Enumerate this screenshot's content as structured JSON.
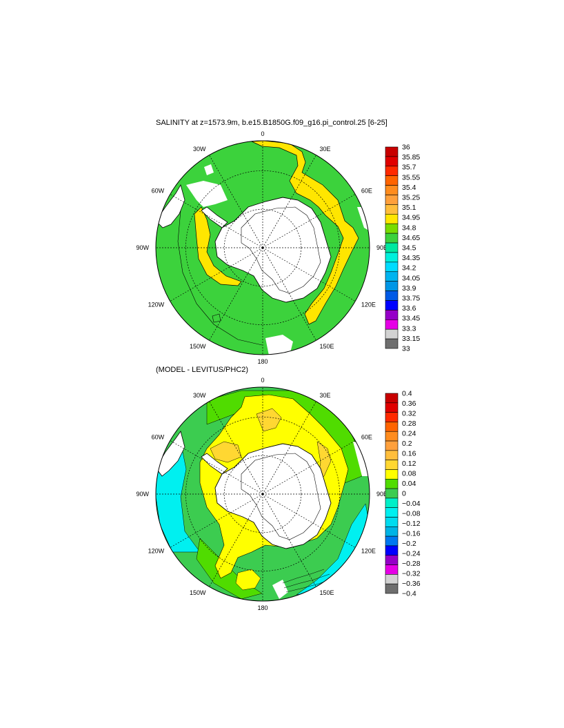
{
  "panels": [
    {
      "id": "salinity",
      "title": "SALINITY at z=1573.9m, b.e15.B1850G.f09_g16.pi_control.25 [6-25]",
      "lon_labels": [
        "0",
        "30E",
        "60E",
        "90E",
        "120E",
        "150E",
        "180",
        "150W",
        "120W",
        "90W",
        "60W",
        "30W"
      ],
      "colorbar": {
        "labels": [
          "36",
          "35.85",
          "35.7",
          "35.55",
          "35.4",
          "35.25",
          "35.1",
          "34.95",
          "34.8",
          "34.65",
          "34.5",
          "34.35",
          "34.2",
          "34.05",
          "33.9",
          "33.75",
          "33.6",
          "33.45",
          "33.3",
          "33.15",
          "33"
        ],
        "colors": [
          "#c80000",
          "#e00000",
          "#ff2a00",
          "#ff6400",
          "#ff8c1e",
          "#ffa03c",
          "#ffbe3c",
          "#ffe600",
          "#78dc00",
          "#3cd23c",
          "#00e8a0",
          "#00f0dc",
          "#00dcff",
          "#00b4f0",
          "#0096e6",
          "#005ae6",
          "#0000ff",
          "#9600c8",
          "#e600e6",
          "#d2d2d2",
          "#6e6e6e"
        ]
      }
    },
    {
      "id": "difference",
      "title": "(MODEL - LEVITUS/PHC2)",
      "lon_labels": [
        "0",
        "30E",
        "60E",
        "90E",
        "120E",
        "150E",
        "180",
        "150W",
        "120W",
        "90W",
        "60W",
        "30W"
      ],
      "colorbar": {
        "labels": [
          "0.4",
          "0.36",
          "0.32",
          "0.28",
          "0.24",
          "0.2",
          "0.16",
          "0.12",
          "0.08",
          "0.04",
          "0",
          "−0.04",
          "−0.08",
          "−0.12",
          "−0.16",
          "−0.2",
          "−0.24",
          "−0.28",
          "−0.32",
          "−0.36",
          "−0.4"
        ],
        "colors": [
          "#c80000",
          "#e00000",
          "#ff2a00",
          "#ff6400",
          "#ff8c1e",
          "#ffa03c",
          "#ffbe3c",
          "#ffd732",
          "#ffff00",
          "#50dc00",
          "#3ccc50",
          "#00f0c8",
          "#00f0f0",
          "#00dcf0",
          "#00b4e6",
          "#0078f0",
          "#0000ff",
          "#9600c8",
          "#e600e6",
          "#d2d2d2",
          "#6e6e6e"
        ]
      }
    }
  ],
  "colors": {
    "land": "#ffffff",
    "outline": "#000000"
  }
}
